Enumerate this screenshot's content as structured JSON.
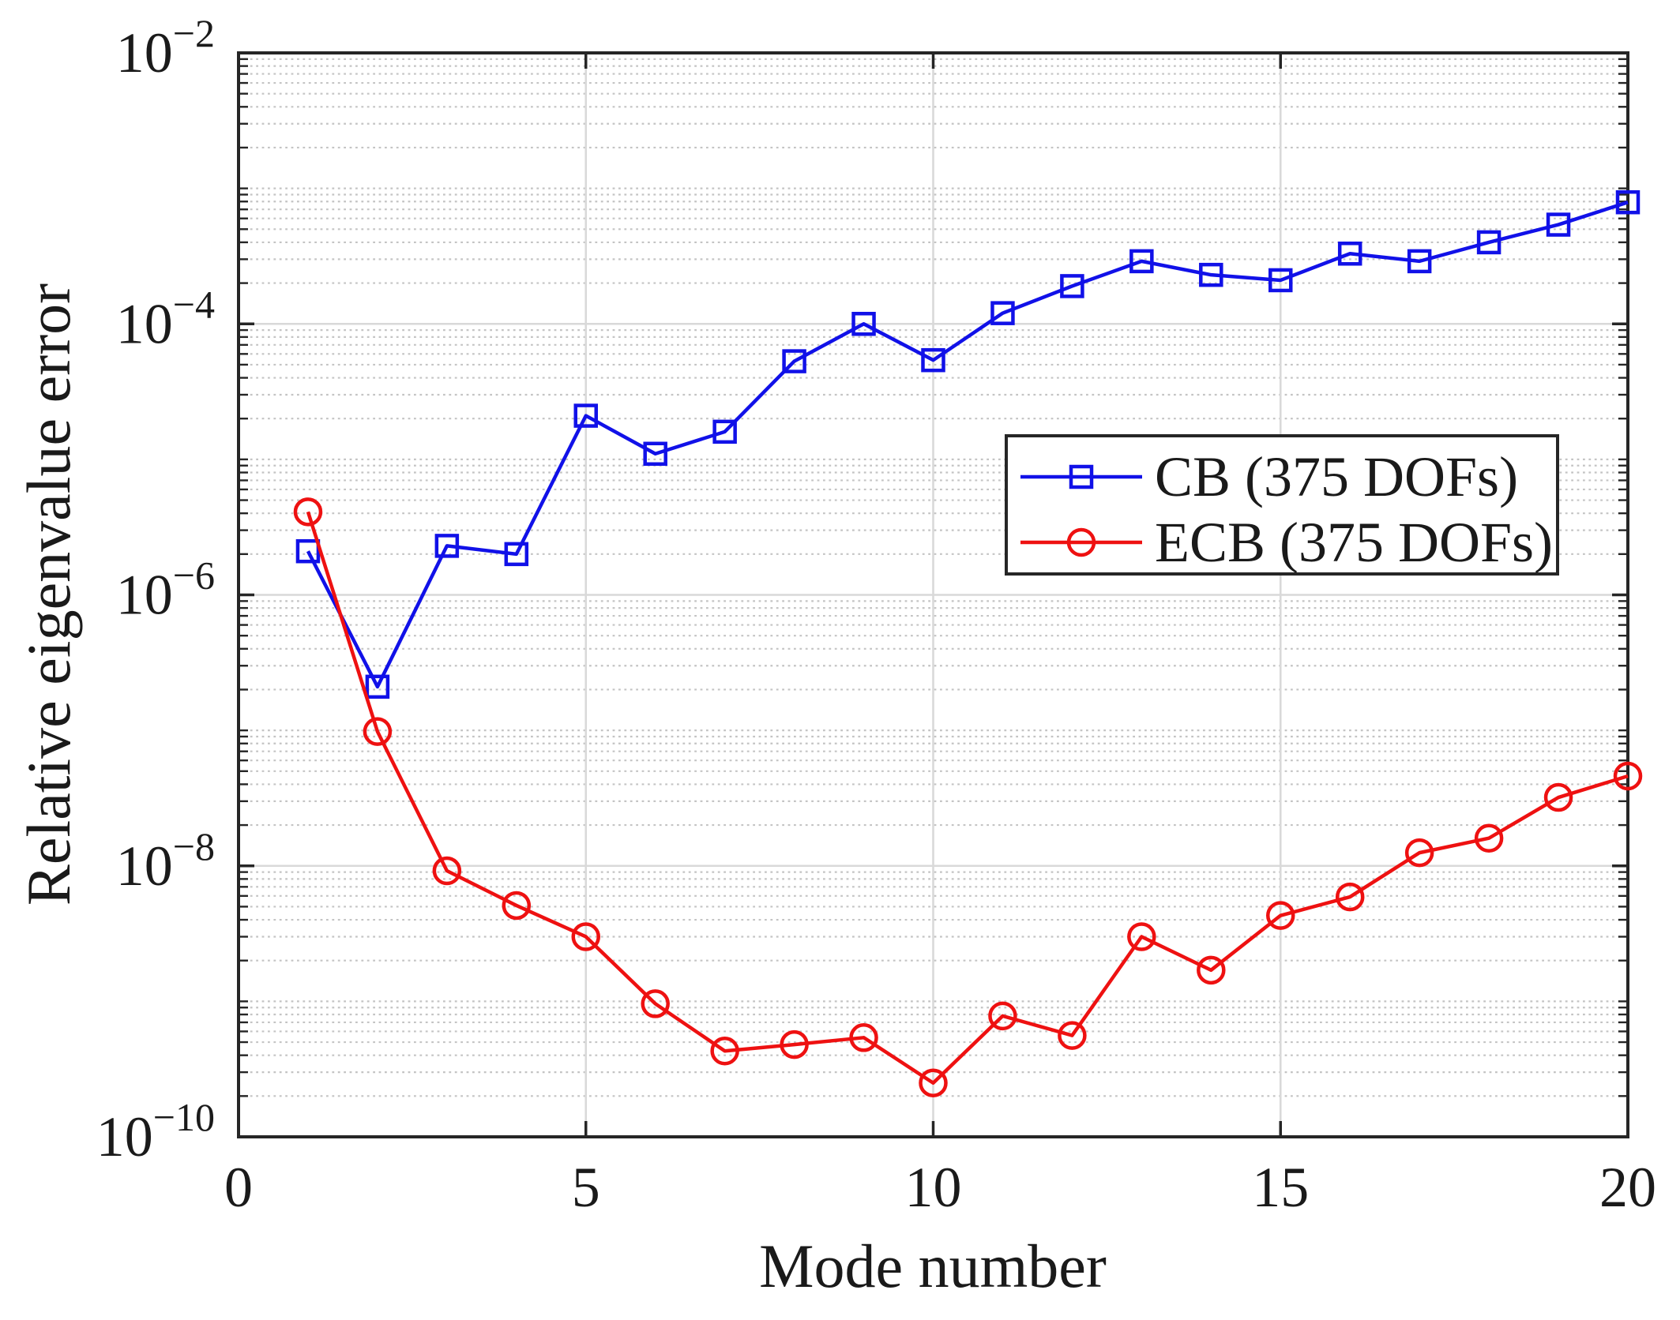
{
  "figure": {
    "background": "#ffffff",
    "axis_color": "#262626",
    "major_grid_color": "#d9d9d9",
    "minor_grid_color": "#c4c4c4"
  },
  "chart_data": {
    "type": "line",
    "title": "",
    "xlabel": "Mode number",
    "ylabel": "Relative eigenvalue error",
    "x": [
      1,
      2,
      3,
      4,
      5,
      6,
      7,
      8,
      9,
      10,
      11,
      12,
      13,
      14,
      15,
      16,
      17,
      18,
      19,
      20
    ],
    "xlim": [
      0,
      20
    ],
    "x_ticks": [
      0,
      5,
      10,
      15,
      20
    ],
    "y_scale": "log",
    "ylim": [
      1e-10,
      0.01
    ],
    "y_tick_exponents": [
      -2,
      -4,
      -6,
      -8,
      -10
    ],
    "grid": "major solid, log minor dotted",
    "legend_position": "middle-right",
    "series": [
      {
        "name": "CB (375 DOFs)",
        "color": "#1111e8",
        "marker": "square",
        "values": [
          2.1e-06,
          2.1e-07,
          2.3e-06,
          2e-06,
          2.1e-05,
          1.1e-05,
          1.6e-05,
          5.3e-05,
          0.0001,
          5.4e-05,
          0.00012,
          0.00019,
          0.00029,
          0.00023,
          0.00021,
          0.00033,
          0.00029,
          0.0004,
          0.00054,
          0.00079
        ]
      },
      {
        "name": "ECB (375 DOFs)",
        "color": "#ee1111",
        "marker": "circle",
        "values": [
          4.1e-06,
          9.8e-08,
          9.2e-09,
          5.1e-09,
          3e-09,
          9.6e-10,
          4.3e-10,
          4.8e-10,
          5.4e-10,
          2.5e-10,
          7.8e-10,
          5.6e-10,
          3e-09,
          1.7e-09,
          4.3e-09,
          5.9e-09,
          1.25e-08,
          1.6e-08,
          3.2e-08,
          4.6e-08
        ]
      }
    ]
  }
}
